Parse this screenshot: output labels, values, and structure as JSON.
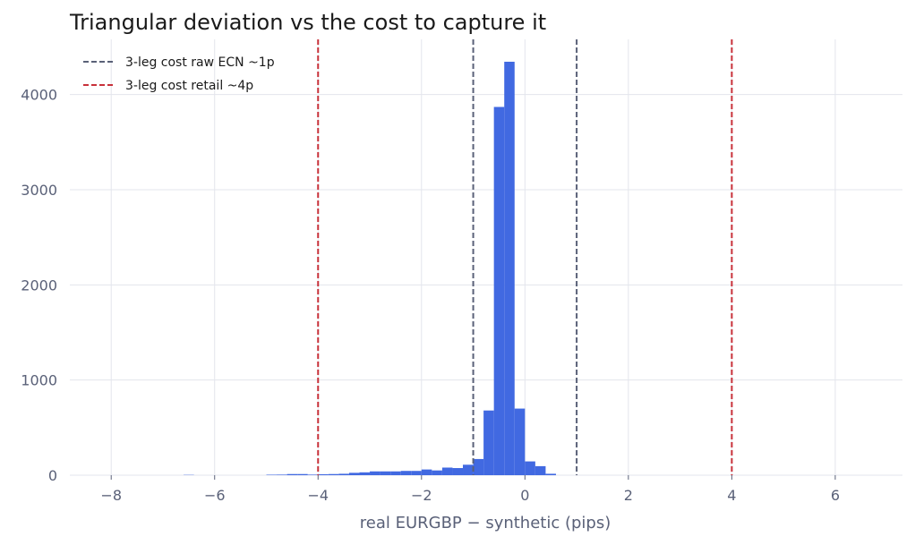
{
  "chart_data": {
    "type": "bar",
    "title": "Triangular deviation vs the cost to capture it",
    "xlabel": "real EURGBP − synthetic (pips)",
    "ylabel": "",
    "xlim": [
      -8.8,
      7.3
    ],
    "ylim": [
      0,
      4580
    ],
    "xticks": [
      -8,
      -6,
      -4,
      -2,
      0,
      2,
      4,
      6
    ],
    "xtick_labels": [
      "−8",
      "−6",
      "−4",
      "−2",
      "0",
      "2",
      "4",
      "6"
    ],
    "yticks": [
      0,
      1000,
      2000,
      3000,
      4000
    ],
    "ytick_labels": [
      "0",
      "1000",
      "2000",
      "3000",
      "4000"
    ],
    "grid": true,
    "bar_color": "#4169e1",
    "bins": [
      {
        "x0": -6.6,
        "x1": -6.4,
        "count": 3
      },
      {
        "x0": -5.0,
        "x1": -4.8,
        "count": 5
      },
      {
        "x0": -4.8,
        "x1": -4.6,
        "count": 6
      },
      {
        "x0": -4.6,
        "x1": -4.4,
        "count": 12
      },
      {
        "x0": -4.4,
        "x1": -4.2,
        "count": 12
      },
      {
        "x0": -4.2,
        "x1": -4.0,
        "count": 6
      },
      {
        "x0": -4.0,
        "x1": -3.8,
        "count": 10
      },
      {
        "x0": -3.8,
        "x1": -3.6,
        "count": 12
      },
      {
        "x0": -3.6,
        "x1": -3.4,
        "count": 15
      },
      {
        "x0": -3.4,
        "x1": -3.2,
        "count": 25
      },
      {
        "x0": -3.2,
        "x1": -3.0,
        "count": 30
      },
      {
        "x0": -3.0,
        "x1": -2.8,
        "count": 40
      },
      {
        "x0": -2.8,
        "x1": -2.6,
        "count": 40
      },
      {
        "x0": -2.6,
        "x1": -2.4,
        "count": 40
      },
      {
        "x0": -2.4,
        "x1": -2.2,
        "count": 45
      },
      {
        "x0": -2.2,
        "x1": -2.0,
        "count": 45
      },
      {
        "x0": -2.0,
        "x1": -1.8,
        "count": 60
      },
      {
        "x0": -1.8,
        "x1": -1.6,
        "count": 50
      },
      {
        "x0": -1.6,
        "x1": -1.4,
        "count": 80
      },
      {
        "x0": -1.4,
        "x1": -1.2,
        "count": 75
      },
      {
        "x0": -1.2,
        "x1": -1.0,
        "count": 110
      },
      {
        "x0": -1.0,
        "x1": -0.8,
        "count": 170
      },
      {
        "x0": -0.8,
        "x1": -0.6,
        "count": 680
      },
      {
        "x0": -0.6,
        "x1": -0.4,
        "count": 3870
      },
      {
        "x0": -0.4,
        "x1": -0.2,
        "count": 4345
      },
      {
        "x0": -0.2,
        "x1": 0.0,
        "count": 700
      },
      {
        "x0": 0.0,
        "x1": 0.2,
        "count": 145
      },
      {
        "x0": 0.2,
        "x1": 0.4,
        "count": 95
      },
      {
        "x0": 0.4,
        "x1": 0.6,
        "count": 15
      }
    ],
    "vlines": [
      {
        "legend_index": 0,
        "x": -1,
        "color": "#5a6178"
      },
      {
        "legend_index": 0,
        "x": 1,
        "color": "#5a6178"
      },
      {
        "legend_index": 1,
        "x": -4,
        "color": "#c8313a"
      },
      {
        "legend_index": 1,
        "x": 4,
        "color": "#c8313a"
      }
    ],
    "legend_position": "top-left",
    "legend": [
      {
        "label": "3-leg cost raw ECN ~1p",
        "color": "#5a6178"
      },
      {
        "label": "3-leg cost retail ~4p",
        "color": "#c8313a"
      }
    ]
  }
}
